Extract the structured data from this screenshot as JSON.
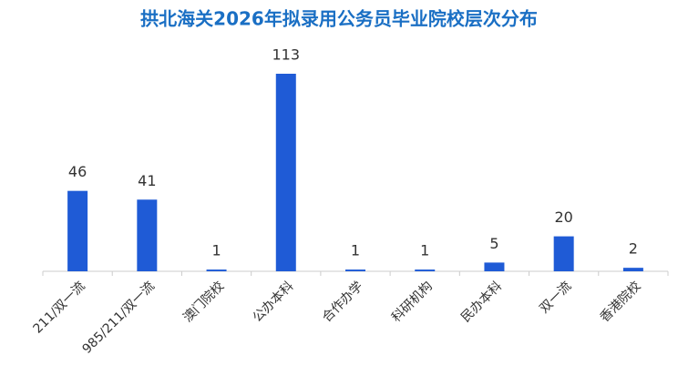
{
  "chart_data": {
    "type": "bar",
    "title": "拱北海关2026年拟录用公务员毕业院校层次分布",
    "categories": [
      "211/双一流",
      "985/211/双一流",
      "澳门院校",
      "公办本科",
      "合作办学",
      "科研机构",
      "民办本科",
      "双一流",
      "香港院校"
    ],
    "values": [
      46,
      41,
      1,
      113,
      1,
      1,
      5,
      20,
      2
    ],
    "color": "#1f5bd6"
  }
}
